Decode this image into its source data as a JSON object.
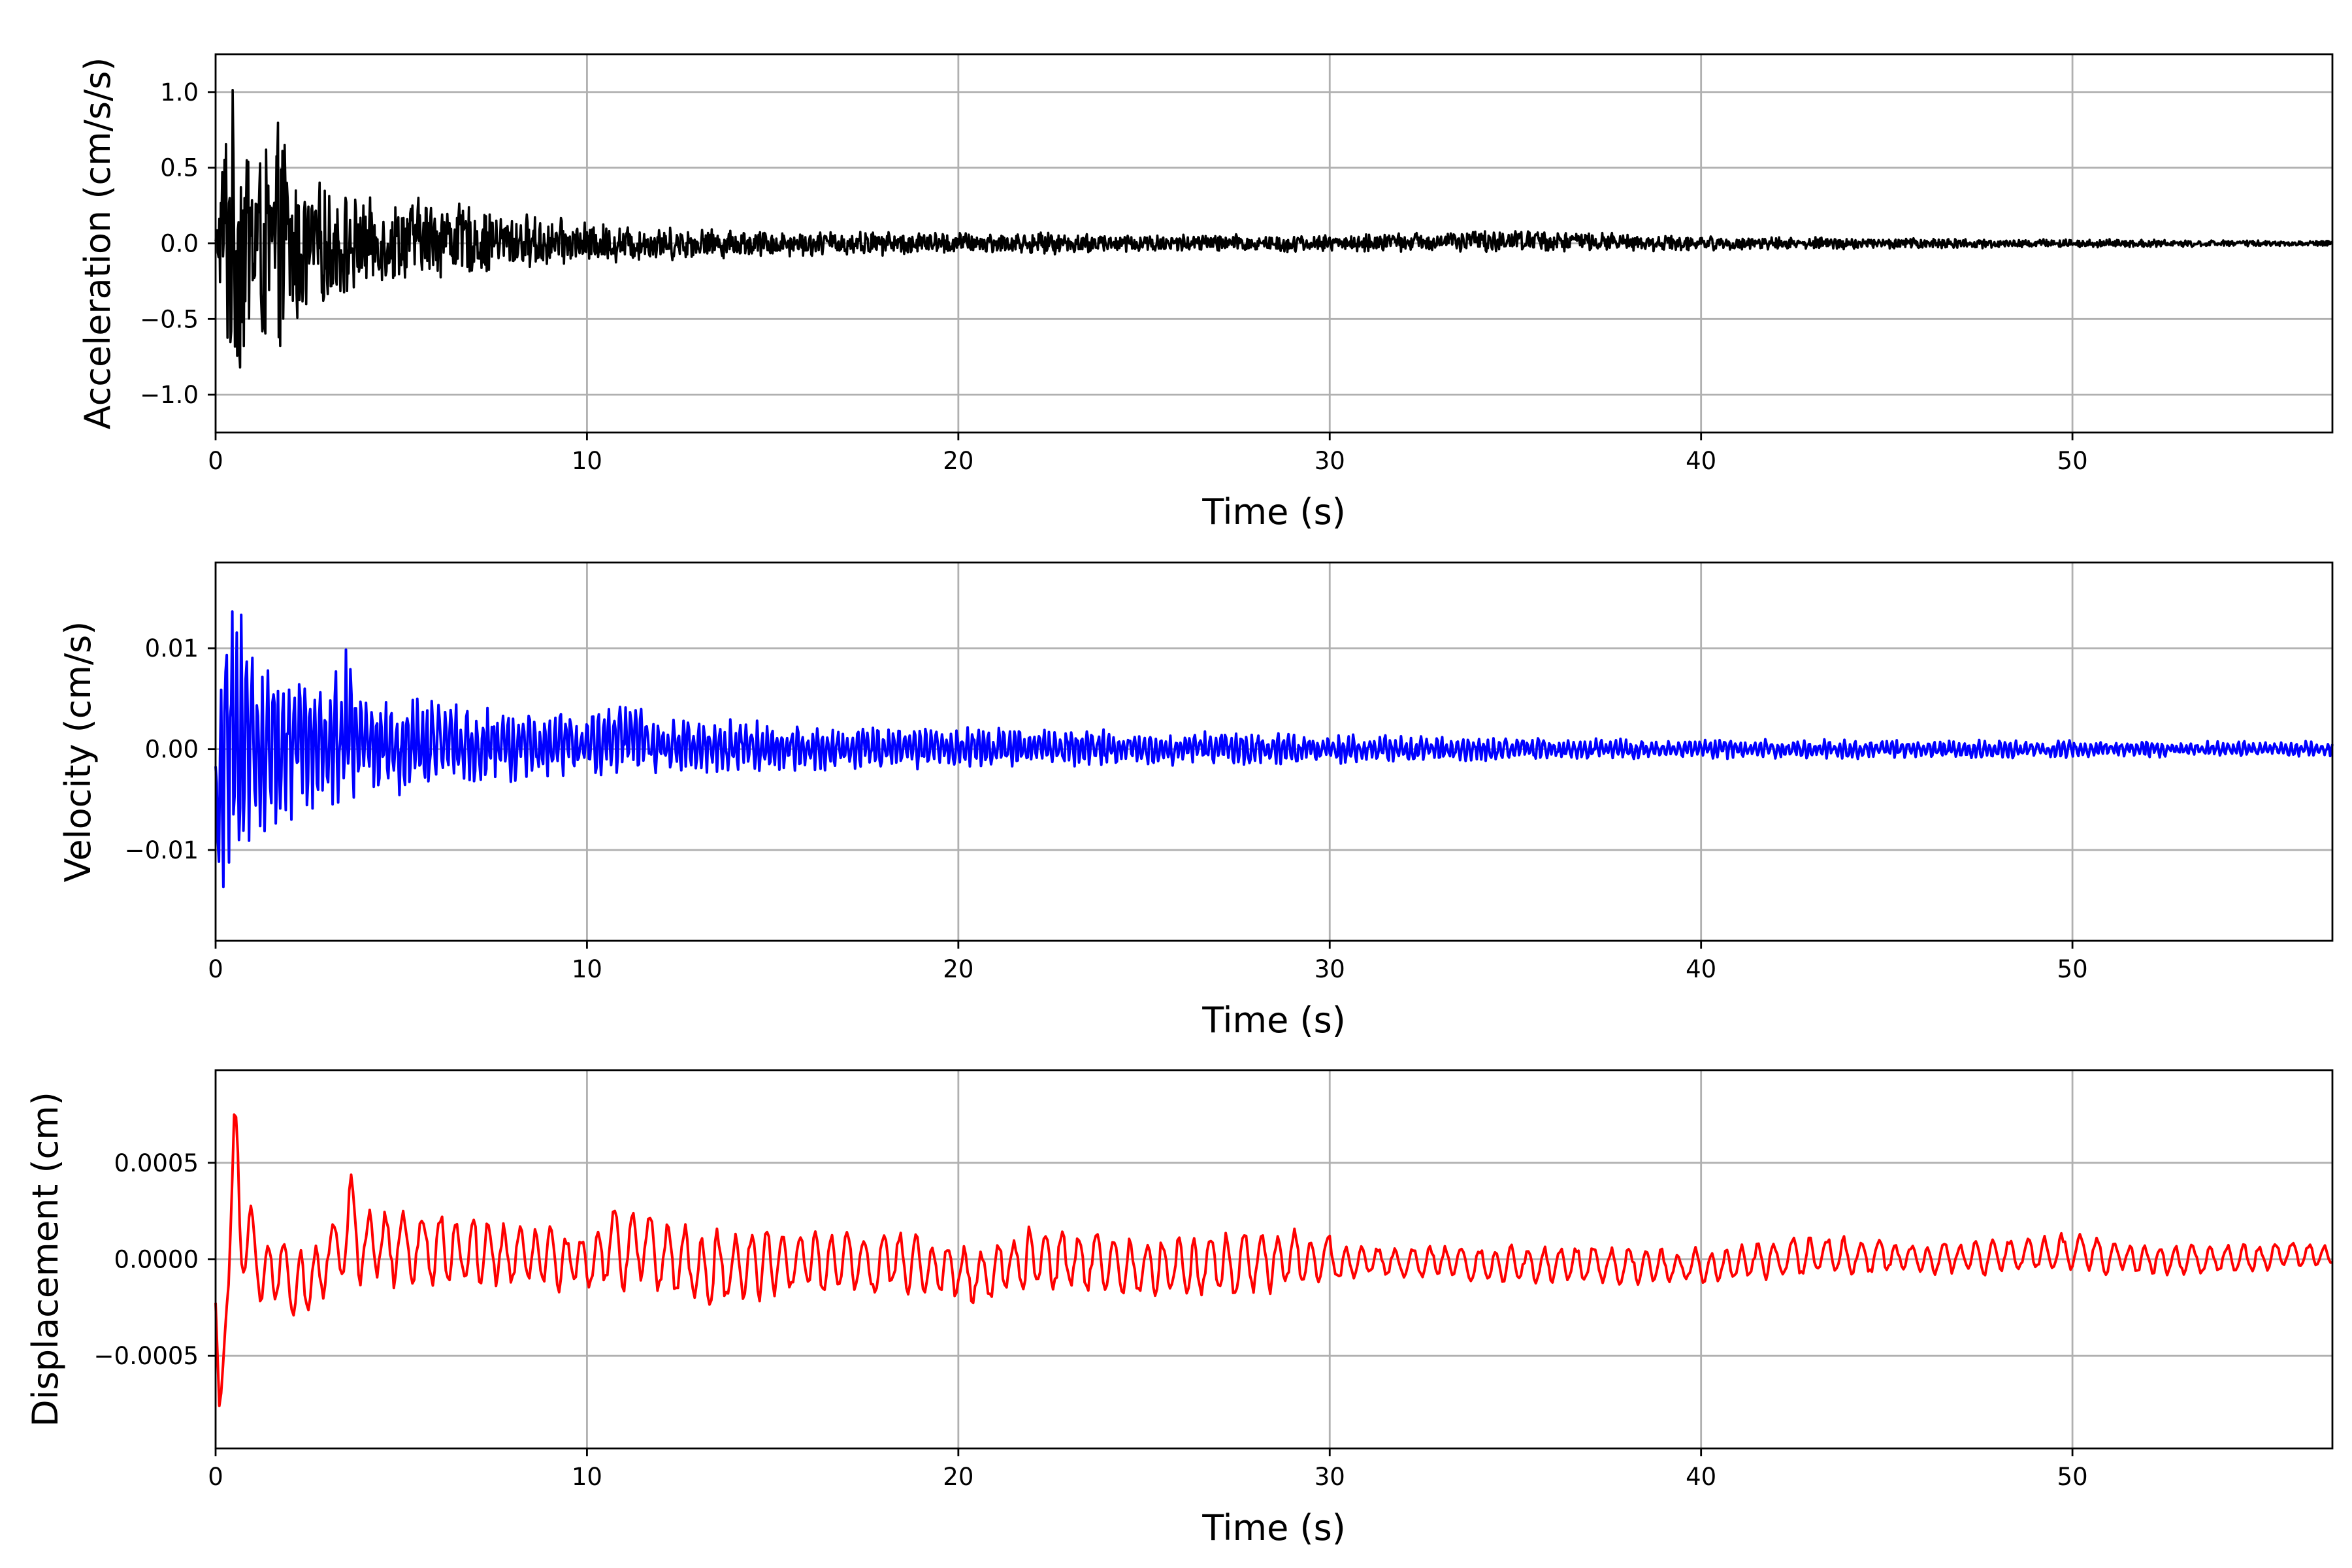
{
  "chart_data": [
    {
      "type": "line",
      "xlabel": "Time (s)",
      "ylabel": "Acceleration (cm/s/s)",
      "xlim": [
        0,
        57
      ],
      "ylim": [
        -1.25,
        1.25
      ],
      "xticks": [
        0,
        10,
        20,
        30,
        40,
        50
      ],
      "xtick_labels": [
        "0",
        "10",
        "20",
        "30",
        "40",
        "50"
      ],
      "yticks": [
        1.0,
        0.5,
        0.0,
        -0.5,
        -1.0
      ],
      "ytick_labels": [
        "1.0",
        "0.5",
        "0.0",
        "−0.5",
        "−1.0"
      ],
      "grid": true,
      "color": "#000000",
      "x": [
        0,
        0.3,
        0.6,
        0.9,
        1.2,
        1.5,
        1.8,
        2.1,
        2.5,
        3,
        3.5,
        4,
        5,
        6,
        7,
        8,
        10,
        12,
        14,
        16,
        20,
        25,
        30,
        35,
        40,
        45,
        50,
        55,
        57
      ],
      "envelope_upper": [
        0.05,
        1.12,
        1.0,
        0.92,
        0.75,
        0.68,
        0.92,
        0.5,
        0.45,
        0.4,
        0.38,
        0.3,
        0.32,
        0.35,
        0.25,
        0.22,
        0.15,
        0.12,
        0.1,
        0.09,
        0.08,
        0.07,
        0.06,
        0.1,
        0.05,
        0.04,
        0.03,
        0.02,
        0.02
      ],
      "envelope_lower": [
        -0.05,
        -0.95,
        -0.98,
        -0.9,
        -0.75,
        -0.84,
        -0.84,
        -0.65,
        -0.5,
        -0.45,
        -0.42,
        -0.3,
        -0.28,
        -0.25,
        -0.22,
        -0.2,
        -0.15,
        -0.12,
        -0.1,
        -0.09,
        -0.08,
        -0.07,
        -0.06,
        -0.06,
        -0.05,
        -0.04,
        -0.03,
        -0.02,
        -0.02
      ]
    },
    {
      "type": "line",
      "xlabel": "Time (s)",
      "ylabel": "Velocity (cm/s)",
      "xlim": [
        0,
        57
      ],
      "ylim": [
        -0.019,
        0.0185
      ],
      "xticks": [
        0,
        10,
        20,
        30,
        40,
        50
      ],
      "xtick_labels": [
        "0",
        "10",
        "20",
        "30",
        "40",
        "50"
      ],
      "yticks": [
        0.01,
        0.0,
        -0.01
      ],
      "ytick_labels": [
        "0.01",
        "0.00",
        "−0.01"
      ],
      "grid": true,
      "color": "#0000ff",
      "x": [
        0,
        0.3,
        0.6,
        0.9,
        1.2,
        1.5,
        1.8,
        2.1,
        2.5,
        3,
        3.5,
        4,
        5,
        6,
        7,
        8,
        10,
        11.2,
        12,
        14,
        16,
        20,
        25,
        30,
        35,
        40,
        45,
        50,
        55,
        57
      ],
      "envelope_upper": [
        0.0,
        0.0165,
        0.0172,
        0.0105,
        0.0095,
        0.01,
        0.0095,
        0.008,
        0.007,
        0.0065,
        0.0112,
        0.006,
        0.0055,
        0.005,
        0.0045,
        0.004,
        0.004,
        0.0048,
        0.003,
        0.003,
        0.0025,
        0.0022,
        0.002,
        0.0015,
        0.0012,
        0.001,
        0.001,
        0.0009,
        0.0008,
        0.0008
      ],
      "envelope_lower": [
        -0.0148,
        -0.0148,
        -0.0135,
        -0.01,
        -0.009,
        -0.0085,
        -0.0085,
        -0.008,
        -0.0065,
        -0.006,
        -0.0075,
        -0.005,
        -0.0048,
        -0.0045,
        -0.004,
        -0.0035,
        -0.003,
        -0.0025,
        -0.0025,
        -0.0025,
        -0.0022,
        -0.002,
        -0.0018,
        -0.0015,
        -0.0012,
        -0.001,
        -0.001,
        -0.0009,
        -0.0008,
        -0.0008
      ]
    },
    {
      "type": "line",
      "xlabel": "Time (s)",
      "ylabel": "Displacement (cm)",
      "xlim": [
        0,
        57
      ],
      "ylim": [
        -0.00098,
        0.00098
      ],
      "xticks": [
        0,
        10,
        20,
        30,
        40,
        50
      ],
      "xtick_labels": [
        "0",
        "10",
        "20",
        "30",
        "40",
        "50"
      ],
      "yticks": [
        0.0005,
        0.0,
        -0.0005
      ],
      "ytick_labels": [
        "0.0005",
        "0.0000",
        "−0.0005"
      ],
      "grid": true,
      "color": "#ff0000",
      "x": [
        0,
        0.1,
        0.3,
        0.5,
        0.8,
        1.2,
        2,
        2.6,
        3,
        3.5,
        3.6,
        4,
        5,
        6,
        8,
        10,
        10.7,
        11.5,
        13,
        16,
        18.5,
        20.5,
        22,
        25,
        29,
        31,
        35,
        40,
        43.3,
        46,
        50,
        52,
        55,
        57
      ],
      "envelope_upper": [
        -0.0003,
        -0.00085,
        -0.0001,
        0.0009,
        0.00045,
        0.0002,
        0.00015,
        0.0001,
        0.0002,
        0.0003,
        0.00053,
        0.0003,
        0.0003,
        0.00028,
        0.00025,
        0.00015,
        0.00033,
        0.0003,
        0.0002,
        0.00018,
        0.0002,
        0.0001,
        0.00025,
        0.00015,
        0.0002,
        8e-05,
        0.0001,
        8e-05,
        0.00015,
        0.0001,
        0.00015,
        8e-05,
        0.0001,
        0.0001
      ],
      "envelope_lower": [
        -0.0003,
        -0.00085,
        -0.0002,
        -0.0001,
        -0.0002,
        -0.0003,
        -0.00035,
        -0.00038,
        -0.0002,
        -0.0001,
        -0.0001,
        -0.0002,
        -0.0002,
        -0.0002,
        -0.0002,
        -0.0002,
        -0.0002,
        -0.0002,
        -0.0003,
        -0.0002,
        -0.0002,
        -0.0003,
        -0.0002,
        -0.00025,
        -0.0002,
        -0.0001,
        -0.00015,
        -0.00015,
        -0.0001,
        -0.0001,
        -8e-05,
        -0.0001,
        -8e-05,
        -5e-05
      ]
    }
  ]
}
